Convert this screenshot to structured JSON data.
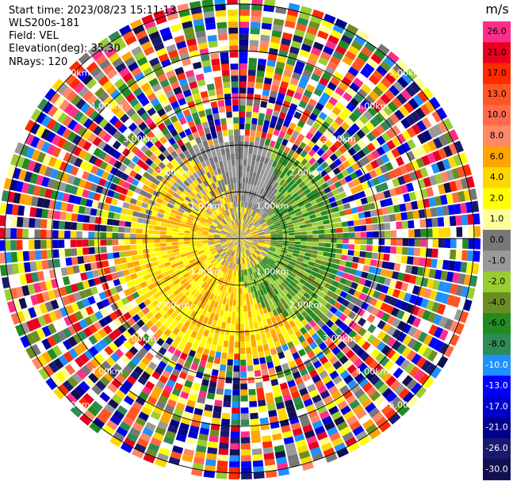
{
  "info": {
    "start_time": "Start time: 2023/08/23 15:11:13",
    "site": "WLS200s-181",
    "field": "Field: VEL",
    "elevation": "Elevation(deg): 35.30",
    "nrays": "NRays: 120"
  },
  "colorbar": {
    "unit": "m/s",
    "levels": [
      {
        "label": "26.0",
        "color": "#ff2d8a"
      },
      {
        "label": "21.0",
        "color": "#e8001e"
      },
      {
        "label": "17.0",
        "color": "#ff2a00"
      },
      {
        "label": "13.0",
        "color": "#ff5522"
      },
      {
        "label": "10.0",
        "color": "#ff6a4a"
      },
      {
        "label": "8.0",
        "color": "#ff8866"
      },
      {
        "label": "6.0",
        "color": "#ffa500"
      },
      {
        "label": "4.0",
        "color": "#ffd700"
      },
      {
        "label": "2.0",
        "color": "#ffff00"
      },
      {
        "label": "1.0",
        "color": "#ffff99"
      },
      {
        "label": "0.0",
        "color": "#777777"
      },
      {
        "label": "-1.0",
        "color": "#999999"
      },
      {
        "label": "-2.0",
        "color": "#9acd32"
      },
      {
        "label": "-4.0",
        "color": "#6b8e23"
      },
      {
        "label": "-6.0",
        "color": "#228b22"
      },
      {
        "label": "-8.0",
        "color": "#2e8b57"
      },
      {
        "label": "-10.0",
        "color": "#1e90ff"
      },
      {
        "label": "-13.0",
        "color": "#0000ff"
      },
      {
        "label": "-17.0",
        "color": "#0000cd"
      },
      {
        "label": "-21.0",
        "color": "#00008b"
      },
      {
        "label": "-26.0",
        "color": "#191970"
      },
      {
        "label": "-30.0",
        "color": "#101050"
      }
    ]
  },
  "range_rings": [
    {
      "label": "1.00km"
    },
    {
      "label": "2.00km"
    },
    {
      "label": "3.00km"
    },
    {
      "label": "4.00km"
    },
    {
      "label": "5.00km"
    }
  ],
  "inner_palette": {
    "positive": [
      "#ffff00",
      "#ffd700",
      "#ffa500"
    ],
    "near_zero": [
      "#777777",
      "#999999"
    ],
    "negative": [
      "#9acd32",
      "#6b8e23",
      "#228b22"
    ]
  }
}
